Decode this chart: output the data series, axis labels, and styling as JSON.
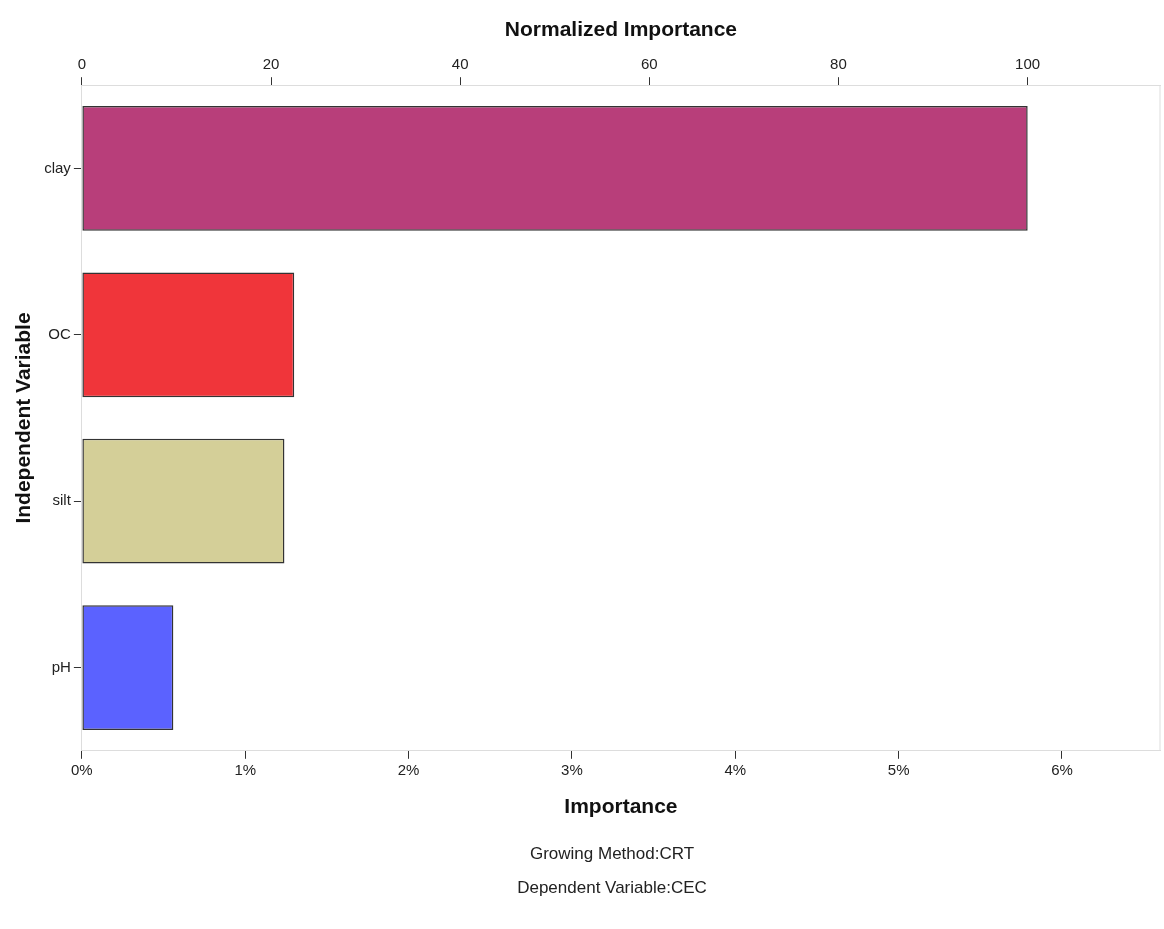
{
  "chart_data": {
    "type": "bar",
    "orientation": "horizontal",
    "categories": [
      "clay",
      "OC",
      "silt",
      "pH"
    ],
    "values": [
      5.79,
      1.3,
      1.24,
      0.56
    ],
    "colors": [
      "#b83e7a",
      "#f0353a",
      "#d4cf98",
      "#5b62ff"
    ],
    "xlim": [
      0,
      6.6
    ],
    "xticks": [
      {
        "value": 0,
        "label": "0%"
      },
      {
        "value": 1,
        "label": "1%"
      },
      {
        "value": 2,
        "label": "2%"
      },
      {
        "value": 3,
        "label": "3%"
      },
      {
        "value": 4,
        "label": "4%"
      },
      {
        "value": 5,
        "label": "5%"
      },
      {
        "value": 6,
        "label": "6%"
      }
    ],
    "x2lim": [
      0,
      114
    ],
    "x2ticks": [
      0,
      20,
      40,
      60,
      80,
      100
    ],
    "xlabel": "Importance",
    "x2label": "Normalized Importance",
    "ylabel": "Independent Variable",
    "grid": false,
    "legend": false,
    "annotations": [
      "Growing Method:CRT",
      "Dependent Variable:CEC"
    ]
  }
}
